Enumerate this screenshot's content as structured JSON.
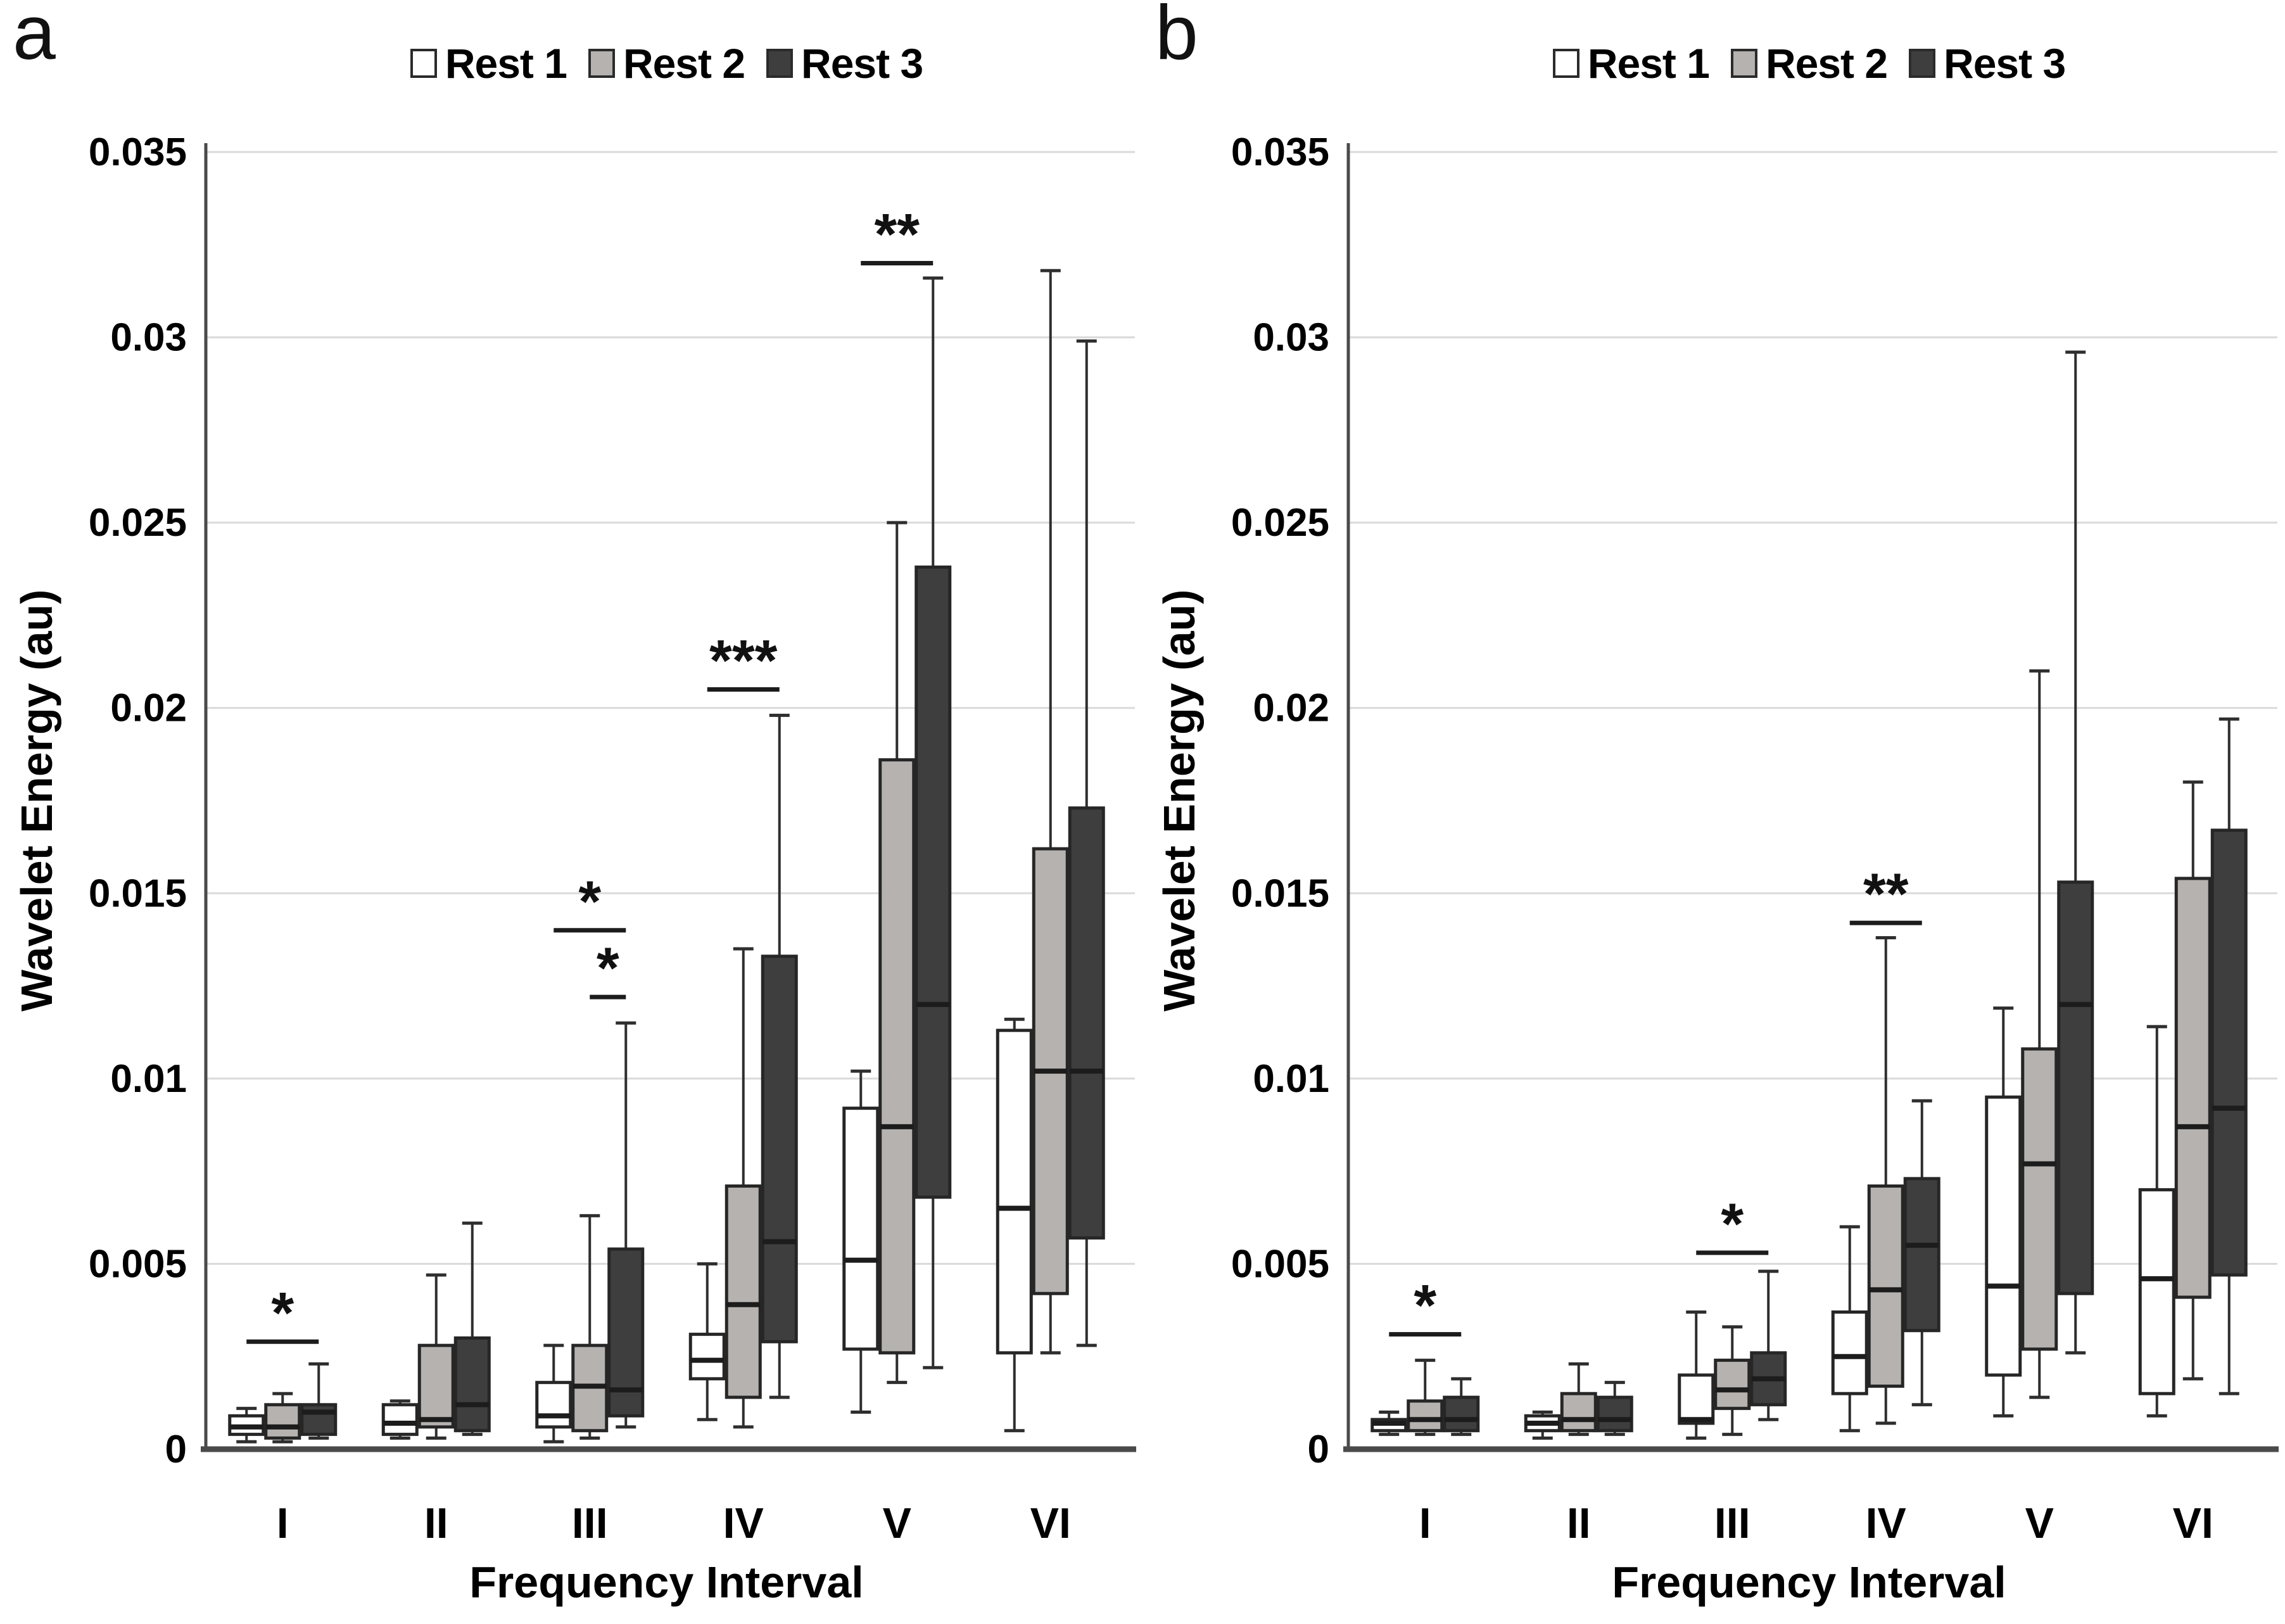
{
  "panels": [
    {
      "letter": "a"
    },
    {
      "letter": "b"
    }
  ],
  "style": {
    "background": "#ffffff",
    "gridline": "#dadada",
    "axis": "#4a4a4a",
    "box_stroke": "#262626",
    "median": "#1c1c1c",
    "whisker": "#2e2e2e",
    "sig": "#1c1c1c",
    "text": "#000000"
  },
  "chart_data": [
    {
      "type": "boxplot",
      "panel": "a",
      "xlabel": "Frequency Interval",
      "ylabel": "Wavelet Energy (au)",
      "ylim": [
        0,
        0.035
      ],
      "grid": true,
      "legend_position": "top-center",
      "yticks": [
        0,
        0.005,
        0.01,
        0.015,
        0.02,
        0.025,
        0.03,
        0.035
      ],
      "ytick_labels": [
        "0",
        "0.005",
        "0.01",
        "0.015",
        "0.02",
        "0.025",
        "0.03",
        "0.035"
      ],
      "categories": [
        "I",
        "II",
        "III",
        "IV",
        "V",
        "VI"
      ],
      "series": [
        {
          "name": "Rest 1",
          "color": "#ffffff",
          "boxes": [
            {
              "min": 0.0002,
              "q1": 0.0004,
              "median": 0.0006,
              "q3": 0.0009,
              "max": 0.0011
            },
            {
              "min": 0.0003,
              "q1": 0.0004,
              "median": 0.0007,
              "q3": 0.0012,
              "max": 0.0013
            },
            {
              "min": 0.0002,
              "q1": 0.0006,
              "median": 0.0009,
              "q3": 0.0018,
              "max": 0.0028
            },
            {
              "min": 0.0008,
              "q1": 0.0019,
              "median": 0.0024,
              "q3": 0.0031,
              "max": 0.005
            },
            {
              "min": 0.001,
              "q1": 0.0027,
              "median": 0.0051,
              "q3": 0.0092,
              "max": 0.0102
            },
            {
              "min": 0.0005,
              "q1": 0.0026,
              "median": 0.0065,
              "q3": 0.0113,
              "max": 0.0116
            }
          ]
        },
        {
          "name": "Rest 2",
          "color": "#b5b2b0",
          "boxes": [
            {
              "min": 0.0002,
              "q1": 0.0003,
              "median": 0.0006,
              "q3": 0.0012,
              "max": 0.0015
            },
            {
              "min": 0.0003,
              "q1": 0.0006,
              "median": 0.0008,
              "q3": 0.0028,
              "max": 0.0047
            },
            {
              "min": 0.0003,
              "q1": 0.0005,
              "median": 0.0017,
              "q3": 0.0028,
              "max": 0.0063
            },
            {
              "min": 0.0006,
              "q1": 0.0014,
              "median": 0.0039,
              "q3": 0.0071,
              "max": 0.0135
            },
            {
              "min": 0.0018,
              "q1": 0.0026,
              "median": 0.0087,
              "q3": 0.0186,
              "max": 0.025
            },
            {
              "min": 0.0026,
              "q1": 0.0042,
              "median": 0.0102,
              "q3": 0.0162,
              "max": 0.0318
            }
          ]
        },
        {
          "name": "Rest 3",
          "color": "#3e3e3e",
          "boxes": [
            {
              "min": 0.0003,
              "q1": 0.0004,
              "median": 0.001,
              "q3": 0.0012,
              "max": 0.0023
            },
            {
              "min": 0.0004,
              "q1": 0.0005,
              "median": 0.0012,
              "q3": 0.003,
              "max": 0.0061
            },
            {
              "min": 0.0006,
              "q1": 0.0009,
              "median": 0.0016,
              "q3": 0.0054,
              "max": 0.0115
            },
            {
              "min": 0.0014,
              "q1": 0.0029,
              "median": 0.0056,
              "q3": 0.0133,
              "max": 0.0198
            },
            {
              "min": 0.0022,
              "q1": 0.0068,
              "median": 0.012,
              "q3": 0.0238,
              "max": 0.0316
            },
            {
              "min": 0.0028,
              "q1": 0.0057,
              "median": 0.0102,
              "q3": 0.0173,
              "max": 0.0299
            }
          ]
        }
      ],
      "significance": [
        {
          "category": "I",
          "label": "*",
          "y": 0.0029,
          "from": 0,
          "to": 2
        },
        {
          "category": "III",
          "label": "*",
          "y": 0.014,
          "from": 0,
          "to": 2
        },
        {
          "category": "III",
          "label": "*",
          "y": 0.0122,
          "from": 1,
          "to": 2
        },
        {
          "category": "IV",
          "label": "***",
          "y": 0.0205,
          "from": 0,
          "to": 2
        },
        {
          "category": "V",
          "label": "**",
          "y": 0.032,
          "from": 0,
          "to": 2
        }
      ]
    },
    {
      "type": "boxplot",
      "panel": "b",
      "xlabel": "Frequency Interval",
      "ylabel": "Wavelet Energy (au)",
      "ylim": [
        0,
        0.035
      ],
      "grid": true,
      "legend_position": "top-center",
      "yticks": [
        0,
        0.005,
        0.01,
        0.015,
        0.02,
        0.025,
        0.03,
        0.035
      ],
      "ytick_labels": [
        "0",
        "0.005",
        "0.01",
        "0.015",
        "0.02",
        "0.025",
        "0.03",
        "0.035"
      ],
      "categories": [
        "I",
        "II",
        "III",
        "IV",
        "V",
        "VI"
      ],
      "series": [
        {
          "name": "Rest 1",
          "color": "#ffffff",
          "boxes": [
            {
              "min": 0.0004,
              "q1": 0.0005,
              "median": 0.0007,
              "q3": 0.0008,
              "max": 0.001
            },
            {
              "min": 0.0003,
              "q1": 0.0005,
              "median": 0.0007,
              "q3": 0.0009,
              "max": 0.001
            },
            {
              "min": 0.0003,
              "q1": 0.0007,
              "median": 0.0008,
              "q3": 0.002,
              "max": 0.0037
            },
            {
              "min": 0.0005,
              "q1": 0.0015,
              "median": 0.0025,
              "q3": 0.0037,
              "max": 0.006
            },
            {
              "min": 0.0009,
              "q1": 0.002,
              "median": 0.0044,
              "q3": 0.0095,
              "max": 0.0119
            },
            {
              "min": 0.0009,
              "q1": 0.0015,
              "median": 0.0046,
              "q3": 0.007,
              "max": 0.0114
            }
          ]
        },
        {
          "name": "Rest 2",
          "color": "#b5b2b0",
          "boxes": [
            {
              "min": 0.0004,
              "q1": 0.0005,
              "median": 0.0008,
              "q3": 0.0013,
              "max": 0.0024
            },
            {
              "min": 0.0004,
              "q1": 0.0005,
              "median": 0.0008,
              "q3": 0.0015,
              "max": 0.0023
            },
            {
              "min": 0.0004,
              "q1": 0.0011,
              "median": 0.0016,
              "q3": 0.0024,
              "max": 0.0033
            },
            {
              "min": 0.0007,
              "q1": 0.0017,
              "median": 0.0043,
              "q3": 0.0071,
              "max": 0.0138
            },
            {
              "min": 0.0014,
              "q1": 0.0027,
              "median": 0.0077,
              "q3": 0.0108,
              "max": 0.021
            },
            {
              "min": 0.0019,
              "q1": 0.0041,
              "median": 0.0087,
              "q3": 0.0154,
              "max": 0.018
            }
          ]
        },
        {
          "name": "Rest 3",
          "color": "#3e3e3e",
          "boxes": [
            {
              "min": 0.0004,
              "q1": 0.0005,
              "median": 0.0008,
              "q3": 0.0014,
              "max": 0.0019
            },
            {
              "min": 0.0004,
              "q1": 0.0005,
              "median": 0.0008,
              "q3": 0.0014,
              "max": 0.0018
            },
            {
              "min": 0.0008,
              "q1": 0.0012,
              "median": 0.0019,
              "q3": 0.0026,
              "max": 0.0048
            },
            {
              "min": 0.0012,
              "q1": 0.0032,
              "median": 0.0055,
              "q3": 0.0073,
              "max": 0.0094
            },
            {
              "min": 0.0026,
              "q1": 0.0042,
              "median": 0.012,
              "q3": 0.0153,
              "max": 0.0296
            },
            {
              "min": 0.0015,
              "q1": 0.0047,
              "median": 0.0092,
              "q3": 0.0167,
              "max": 0.0197
            }
          ]
        }
      ],
      "significance": [
        {
          "category": "I",
          "label": "*",
          "y": 0.0031,
          "from": 0,
          "to": 2
        },
        {
          "category": "III",
          "label": "*",
          "y": 0.0053,
          "from": 0,
          "to": 2
        },
        {
          "category": "IV",
          "label": "**",
          "y": 0.0142,
          "from": 0,
          "to": 2
        }
      ]
    }
  ]
}
